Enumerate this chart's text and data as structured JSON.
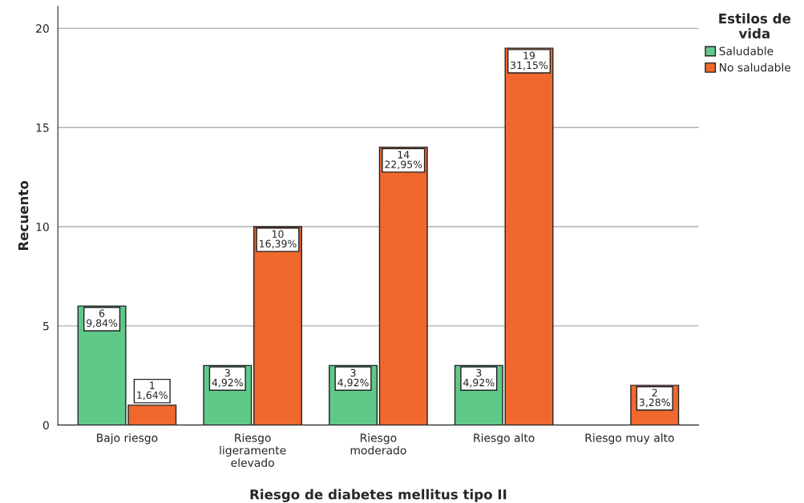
{
  "chart_data": {
    "type": "bar",
    "xlabel": "Riesgo de diabetes mellitus tipo II",
    "ylabel": "Recuento",
    "legend_title": "Estilos de\nvida",
    "categories": [
      "Bajo riesgo",
      "Riesgo\nligeramente\nelevado",
      "Riesgo\nmoderado",
      "Riesgo alto",
      "Riesgo muy alto"
    ],
    "series": [
      {
        "name": "Saludable",
        "color": "#5fc98a",
        "values": [
          6,
          3,
          3,
          3,
          null
        ],
        "value_labels": [
          "6\n9,84%",
          "3\n4,92%",
          "3\n4,92%",
          "3\n4,92%",
          null
        ]
      },
      {
        "name": "No saludable",
        "color": "#f0682d",
        "values": [
          1,
          10,
          14,
          19,
          2
        ],
        "value_labels": [
          "1\n1,64%",
          "10\n16,39%",
          "14\n22,95%",
          "19\n31,15%",
          "2\n3,28%"
        ]
      }
    ],
    "ylim": [
      0,
      21.1
    ],
    "yticks": [
      0,
      5,
      10,
      15,
      20
    ],
    "grid": "y",
    "legend": "top right"
  }
}
